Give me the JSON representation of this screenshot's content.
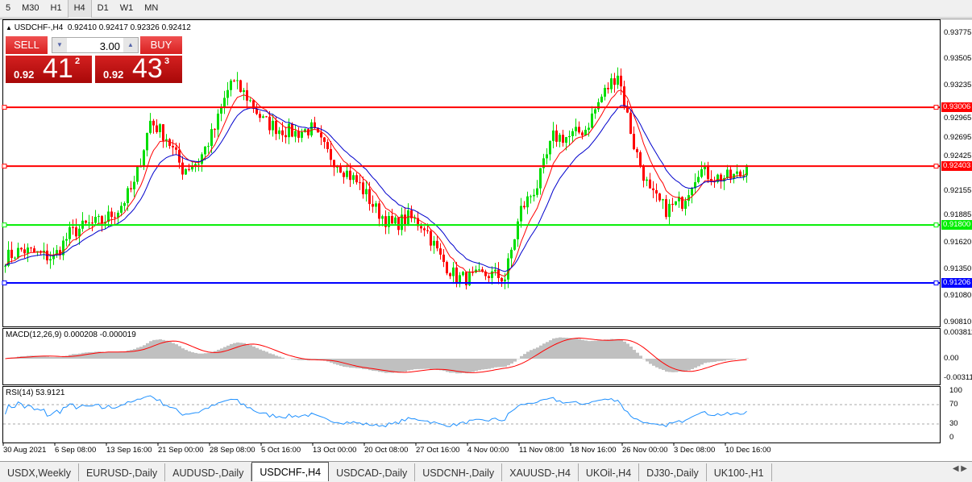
{
  "timeframes": [
    "5",
    "M30",
    "H1",
    "H4",
    "D1",
    "W1",
    "MN"
  ],
  "active_timeframe": "H4",
  "chart": {
    "header": "USDCHF-,H4  0.92410 0.92417 0.92326 0.92412",
    "symbol": "USDCHF-,H4",
    "ohlc": "0.92410 0.92417 0.92326 0.92412"
  },
  "trade": {
    "sell_label": "SELL",
    "buy_label": "BUY",
    "lot": "3.00",
    "sell_prefix": "0.92",
    "sell_big": "41",
    "sell_sup": "2",
    "buy_prefix": "0.92",
    "buy_big": "43",
    "buy_sup": "3"
  },
  "price_axis": [
    "0.93775",
    "0.93505",
    "0.93235",
    "0.92965",
    "0.92695",
    "0.92425",
    "0.92155",
    "0.91885",
    "0.91620",
    "0.91350",
    "0.91080",
    "0.90810"
  ],
  "levels": [
    {
      "price": "0.93006",
      "color": "#ff0000"
    },
    {
      "price": "0.92403",
      "color": "#ff0000"
    },
    {
      "price": "0.91800",
      "color": "#00ee00"
    },
    {
      "price": "0.91206",
      "color": "#0000ff"
    }
  ],
  "macd": {
    "label": "MACD(12,26,9) 0.000208 -0.000019",
    "axis": [
      "0.003811",
      "0.00",
      "-0.00311"
    ]
  },
  "rsi": {
    "label": "RSI(14) 53.9121",
    "axis": [
      "100",
      "70",
      "30",
      "0"
    ]
  },
  "time_axis": [
    "30 Aug 2021",
    "6 Sep 08:00",
    "13 Sep 16:00",
    "21 Sep 00:00",
    "28 Sep 08:00",
    "5 Oct 16:00",
    "13 Oct 00:00",
    "20 Oct 08:00",
    "27 Oct 16:00",
    "4 Nov 00:00",
    "11 Nov 08:00",
    "18 Nov 16:00",
    "26 Nov 00:00",
    "3 Dec 08:00",
    "10 Dec 16:00"
  ],
  "tabs": [
    "USDX,Weekly",
    "EURUSD-,Daily",
    "AUDUSD-,Daily",
    "USDCHF-,H4",
    "USDCAD-,Daily",
    "USDCNH-,Daily",
    "XAUUSD-,H4",
    "UKOil-,H4",
    "DJ30-,Daily",
    "UK100-,H1"
  ],
  "active_tab": "USDCHF-,H4",
  "colors": {
    "up": "#00dd00",
    "down": "#ff0000",
    "ma_fast": "#ff0000",
    "ma_slow": "#0000cc",
    "macd_hist": "#c0c0c0",
    "macd_signal": "#ff0000",
    "rsi": "#1e90ff"
  },
  "chart_data": {
    "type": "candlestick",
    "symbol": "USDCHF-",
    "timeframe": "H4",
    "approx_close_path": [
      0.91462,
      0.91545,
      0.91503,
      0.91462,
      0.9171,
      0.91793,
      0.91834,
      0.91958,
      0.92206,
      0.92866,
      0.92701,
      0.92371,
      0.92453,
      0.92784,
      0.93279,
      0.93114,
      0.92866,
      0.92784,
      0.92742,
      0.92784,
      0.92536,
      0.92371,
      0.92206,
      0.91958,
      0.91793,
      0.91875,
      0.91793,
      0.91462,
      0.91256,
      0.91256,
      0.91297,
      0.91256,
      0.91958,
      0.92206,
      0.92701,
      0.92701,
      0.92784,
      0.93114,
      0.93362,
      0.92619,
      0.92123,
      0.91958,
      0.9204,
      0.92371,
      0.92288,
      0.92288,
      0.92329
    ],
    "ylim": [
      0.9081,
      0.93775
    ]
  }
}
